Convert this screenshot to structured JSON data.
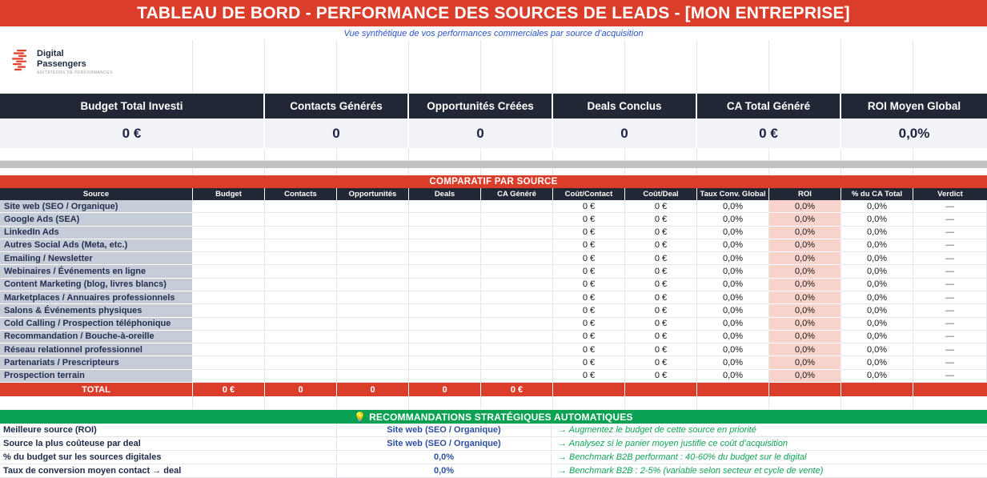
{
  "title": "TABLEAU DE BORD - PERFORMANCE DES SOURCES DE LEADS - [MON ENTREPRISE]",
  "subtitle": "Vue synthétique de vos performances commerciales par source d’acquisition",
  "logo": {
    "line1": "Digital",
    "line2": "Passengers",
    "tagline": "AGITATEURS DE PERFORMANCES"
  },
  "kpis": [
    {
      "label": "Budget Total Investi",
      "value": "0 €"
    },
    {
      "label": "Contacts Générés",
      "value": "0"
    },
    {
      "label": "Opportunités Créées",
      "value": "0"
    },
    {
      "label": "Deals Conclus",
      "value": "0"
    },
    {
      "label": "CA Total Généré",
      "value": "0 €"
    },
    {
      "label": "ROI Moyen Global",
      "value": "0,0%"
    }
  ],
  "comparatif": {
    "banner": "COMPARATIF PAR SOURCE",
    "columns": [
      "Source",
      "Budget",
      "Contacts",
      "Opportunités",
      "Deals",
      "CA Généré",
      "Coût/Contact",
      "Coût/Deal",
      "Taux Conv. Global",
      "ROI",
      "% du CA Total",
      "Verdict"
    ],
    "rows": [
      [
        "Site web (SEO / Organique)",
        "",
        "",
        "",
        "",
        "",
        "0 €",
        "0 €",
        "0,0%",
        "0,0%",
        "0,0%",
        "—"
      ],
      [
        "Google Ads (SEA)",
        "",
        "",
        "",
        "",
        "",
        "0 €",
        "0 €",
        "0,0%",
        "0,0%",
        "0,0%",
        "—"
      ],
      [
        "LinkedIn Ads",
        "",
        "",
        "",
        "",
        "",
        "0 €",
        "0 €",
        "0,0%",
        "0,0%",
        "0,0%",
        "—"
      ],
      [
        "Autres Social Ads (Meta, etc.)",
        "",
        "",
        "",
        "",
        "",
        "0 €",
        "0 €",
        "0,0%",
        "0,0%",
        "0,0%",
        "—"
      ],
      [
        "Emailing / Newsletter",
        "",
        "",
        "",
        "",
        "",
        "0 €",
        "0 €",
        "0,0%",
        "0,0%",
        "0,0%",
        "—"
      ],
      [
        "Webinaires / Événements en ligne",
        "",
        "",
        "",
        "",
        "",
        "0 €",
        "0 €",
        "0,0%",
        "0,0%",
        "0,0%",
        "—"
      ],
      [
        "Content Marketing (blog, livres blancs)",
        "",
        "",
        "",
        "",
        "",
        "0 €",
        "0 €",
        "0,0%",
        "0,0%",
        "0,0%",
        "—"
      ],
      [
        "Marketplaces / Annuaires professionnels",
        "",
        "",
        "",
        "",
        "",
        "0 €",
        "0 €",
        "0,0%",
        "0,0%",
        "0,0%",
        "—"
      ],
      [
        "Salons & Événements physiques",
        "",
        "",
        "",
        "",
        "",
        "0 €",
        "0 €",
        "0,0%",
        "0,0%",
        "0,0%",
        "—"
      ],
      [
        "Cold Calling / Prospection téléphonique",
        "",
        "",
        "",
        "",
        "",
        "0 €",
        "0 €",
        "0,0%",
        "0,0%",
        "0,0%",
        "—"
      ],
      [
        "Recommandation / Bouche-à-oreille",
        "",
        "",
        "",
        "",
        "",
        "0 €",
        "0 €",
        "0,0%",
        "0,0%",
        "0,0%",
        "—"
      ],
      [
        "Réseau relationnel professionnel",
        "",
        "",
        "",
        "",
        "",
        "0 €",
        "0 €",
        "0,0%",
        "0,0%",
        "0,0%",
        "—"
      ],
      [
        "Partenariats / Prescripteurs",
        "",
        "",
        "",
        "",
        "",
        "0 €",
        "0 €",
        "0,0%",
        "0,0%",
        "0,0%",
        "—"
      ],
      [
        "Prospection terrain",
        "",
        "",
        "",
        "",
        "",
        "0 €",
        "0 €",
        "0,0%",
        "0,0%",
        "0,0%",
        "—"
      ]
    ],
    "total": [
      "TOTAL",
      "0 €",
      "0",
      "0",
      "0",
      "0 €",
      "",
      "",
      "",
      "",
      "",
      ""
    ]
  },
  "recommendations": {
    "banner": "💡 RECOMMANDATIONS STRATÉGIQUES AUTOMATIQUES",
    "items": [
      {
        "label": "Meilleure source (ROI)",
        "value": "Site web (SEO / Organique)",
        "advice": "→ Augmentez le budget de cette source en priorité"
      },
      {
        "label": "Source la plus coûteuse par deal",
        "value": "Site web (SEO / Organique)",
        "advice": "→ Analysez si le panier moyen justifie ce coût d’acquisition"
      },
      {
        "label": "% du budget sur les sources digitales",
        "value": "0,0%",
        "advice": "→ Benchmark B2B performant : 40-60% du budget sur le digital"
      },
      {
        "label": "Taux de conversion moyen contact → deal",
        "value": "0,0%",
        "advice": "→ Benchmark B2B : 2-5% (variable selon secteur et cycle de vente)"
      }
    ]
  },
  "colors": {
    "banner_red": "#db3d2b",
    "header_navy": "#212734",
    "kpi_value_bg": "#f1f3f7",
    "source_cell_bg": "#c7ccd9",
    "roi_cell_bg": "#f8d3cc",
    "banner_green": "#0ba152",
    "advice_green": "#0fa356",
    "subtitle_blue": "#2b55c8",
    "value_blue": "#2d4fa3"
  }
}
